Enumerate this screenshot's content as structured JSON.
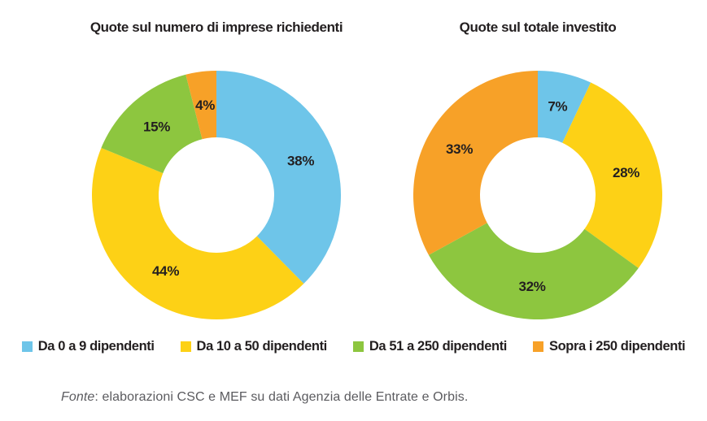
{
  "page": {
    "background": "#FFFFFF"
  },
  "colors": {
    "blue": "#6EC5E9",
    "yellow": "#FDD116",
    "green": "#8DC63F",
    "orange": "#F7A128",
    "label_dark": "#231F20",
    "footer_gray": "#5B5B5F"
  },
  "chart_data": [
    {
      "type": "pie",
      "subtype": "donut",
      "title": "Quote sul numero di imprese richiedenti",
      "categories": [
        "Da 0 a 9 dipendenti",
        "Da 10 a 50 dipendenti",
        "Da 51 a 250 dipendenti",
        "Sopra i 250 dipendenti"
      ],
      "values": [
        38,
        44,
        15,
        4
      ],
      "labels": [
        "38%",
        "44%",
        "15%",
        "4%"
      ],
      "colors": [
        "#6EC5E9",
        "#FDD116",
        "#8DC63F",
        "#F7A128"
      ],
      "start_angle_deg": 0,
      "direction": "clockwise",
      "inner_radius_ratio": 0.465,
      "legend_position": "bottom"
    },
    {
      "type": "pie",
      "subtype": "donut",
      "title": "Quote sul totale investito",
      "categories": [
        "Da 0 a 9 dipendenti",
        "Da 10 a 50 dipendenti",
        "Da 51 a 250 dipendenti",
        "Sopra i 250 dipendenti"
      ],
      "values": [
        7,
        28,
        32,
        33
      ],
      "labels": [
        "7%",
        "28%",
        "32%",
        "33%"
      ],
      "colors": [
        "#6EC5E9",
        "#FDD116",
        "#8DC63F",
        "#F7A128"
      ],
      "start_angle_deg": 0,
      "direction": "clockwise",
      "inner_radius_ratio": 0.465,
      "legend_position": "bottom"
    }
  ],
  "legend": {
    "items": [
      {
        "label": "Da 0 a 9 dipendenti",
        "color": "#6EC5E9"
      },
      {
        "label": "Da 10 a 50 dipendenti",
        "color": "#FDD116"
      },
      {
        "label": "Da 51 a 250 dipendenti",
        "color": "#8DC63F"
      },
      {
        "label": "Sopra i 250 dipendenti",
        "color": "#F7A128"
      }
    ]
  },
  "footer": {
    "source_label": "Fonte",
    "source_text": ": elaborazioni CSC e MEF su dati Agenzia delle Entrate e Orbis."
  }
}
